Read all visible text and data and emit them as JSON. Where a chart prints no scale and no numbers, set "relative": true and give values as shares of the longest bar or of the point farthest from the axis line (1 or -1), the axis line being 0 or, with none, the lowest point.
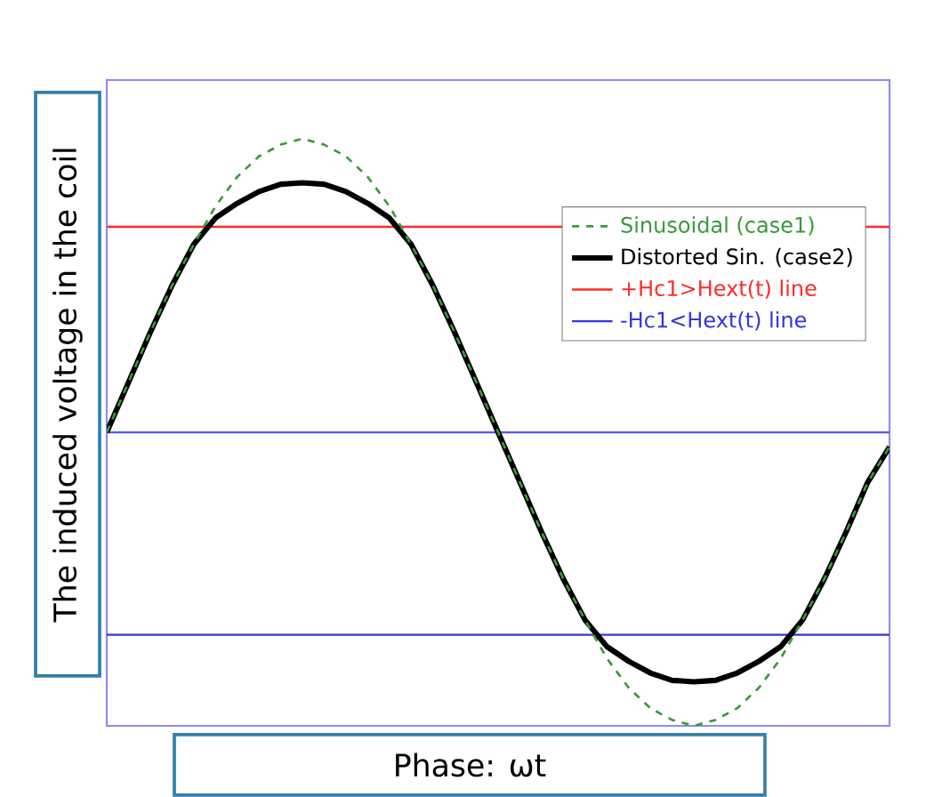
{
  "chart_data": {
    "type": "line",
    "relative": true,
    "xlabel": "Phase: ωt",
    "ylabel": "The induced voltage in the coil",
    "categories": [
      null,
      null,
      null,
      null,
      null,
      null,
      null,
      null,
      null,
      null,
      null,
      null,
      null,
      null,
      null,
      null,
      null,
      null,
      null,
      null,
      null,
      null,
      null,
      null,
      null,
      null,
      null,
      null,
      null,
      null,
      null,
      null,
      null,
      null,
      null,
      null,
      null
    ],
    "series": [
      {
        "name": "Sinusoidal (case1)",
        "color": "#3a9a3a",
        "line_style": "dashed",
        "values": [
          0,
          0.17,
          0.34,
          0.5,
          0.64,
          0.77,
          0.87,
          0.94,
          0.98,
          1,
          0.98,
          0.94,
          0.87,
          0.77,
          0.64,
          0.5,
          0.34,
          0.17,
          0,
          -0.17,
          -0.34,
          -0.5,
          -0.64,
          -0.77,
          -0.87,
          -0.94,
          -0.98,
          -1,
          -0.98,
          -0.94,
          -0.87,
          -0.77,
          -0.64,
          -0.5,
          -0.34,
          -0.17,
          -0.05
        ]
      },
      {
        "name": "Distorted Sin. (case2)",
        "color": "#000000",
        "line_style": "solid",
        "values": [
          0,
          0.17,
          0.34,
          0.5,
          0.64,
          0.73,
          0.78,
          0.82,
          0.845,
          0.85,
          0.845,
          0.82,
          0.78,
          0.73,
          0.64,
          0.5,
          0.34,
          0.17,
          0,
          -0.17,
          -0.34,
          -0.5,
          -0.64,
          -0.73,
          -0.78,
          -0.82,
          -0.845,
          -0.85,
          -0.845,
          -0.82,
          -0.78,
          -0.73,
          -0.64,
          -0.5,
          -0.34,
          -0.17,
          -0.05
        ]
      }
    ],
    "ref_lines": [
      {
        "axis": "y",
        "value": 0.7,
        "label": "+Hc1>Hext(t) line",
        "color": "#ff2a2a"
      },
      {
        "axis": "y",
        "value": -0.69,
        "label": "-Hc1<Hext(t) line",
        "color": "#3535e0"
      },
      {
        "axis": "y",
        "value": 0,
        "color": "#5a5af0"
      }
    ],
    "legend": "right",
    "marker": "none"
  }
}
